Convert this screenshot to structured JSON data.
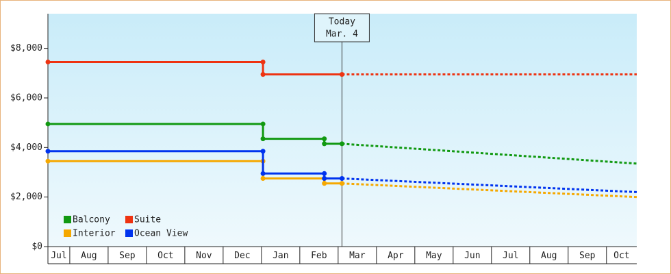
{
  "chart_data": {
    "type": "line",
    "xlim": [
      0.43,
      15.79
    ],
    "xticks": [
      {
        "value": 0,
        "label": "Jul"
      },
      {
        "value": 1,
        "label": "Aug"
      },
      {
        "value": 2,
        "label": "Sep"
      },
      {
        "value": 3,
        "label": "Oct"
      },
      {
        "value": 4,
        "label": "Nov"
      },
      {
        "value": 5,
        "label": "Dec"
      },
      {
        "value": 6,
        "label": "Jan"
      },
      {
        "value": 7,
        "label": "Feb"
      },
      {
        "value": 8,
        "label": "Mar"
      },
      {
        "value": 9,
        "label": "Apr"
      },
      {
        "value": 10,
        "label": "May"
      },
      {
        "value": 11,
        "label": "Jun"
      },
      {
        "value": 12,
        "label": "Jul"
      },
      {
        "value": 13,
        "label": "Aug"
      },
      {
        "value": 14,
        "label": "Sep"
      },
      {
        "value": 15,
        "label": "Oct"
      }
    ],
    "ylim": [
      0,
      9400
    ],
    "yticks": [
      {
        "value": 0,
        "label": "$0"
      },
      {
        "value": 2000,
        "label": "$2,000"
      },
      {
        "value": 4000,
        "label": "$4,000"
      },
      {
        "value": 6000,
        "label": "$6,000"
      },
      {
        "value": 8000,
        "label": "$8,000"
      }
    ],
    "grid": false,
    "legend": "lower left",
    "annotation": {
      "x": 8.1,
      "lines": [
        "Today",
        "Mar. 4"
      ]
    },
    "series": [
      {
        "name": "Balcony",
        "color": "#119911",
        "x": [
          0.43,
          6.04,
          6.04,
          7.64,
          7.64,
          8.1
        ],
        "values": [
          4950,
          4950,
          4350,
          4350,
          4150,
          4150
        ],
        "forecast": {
          "x": [
            8.1,
            15.79
          ],
          "values": [
            4150,
            3350
          ]
        }
      },
      {
        "name": "Suite",
        "color": "#ee3311",
        "x": [
          0.43,
          6.04,
          6.04,
          8.1
        ],
        "values": [
          7450,
          7450,
          6950,
          6950
        ],
        "forecast": {
          "x": [
            8.1,
            15.79
          ],
          "values": [
            6950,
            6950
          ]
        }
      },
      {
        "name": "Interior",
        "color": "#f5a800",
        "x": [
          0.43,
          6.04,
          6.04,
          7.64,
          7.64,
          8.1
        ],
        "values": [
          3450,
          3450,
          2750,
          2750,
          2550,
          2550
        ],
        "forecast": {
          "x": [
            8.1,
            15.79
          ],
          "values": [
            2550,
            2000
          ]
        }
      },
      {
        "name": "Ocean View",
        "color": "#0033ee",
        "x": [
          0.43,
          6.04,
          6.04,
          7.64,
          7.64,
          8.1
        ],
        "values": [
          3850,
          3850,
          2950,
          2950,
          2750,
          2750
        ],
        "forecast": {
          "x": [
            8.1,
            15.79
          ],
          "values": [
            2750,
            2200
          ]
        }
      }
    ]
  }
}
